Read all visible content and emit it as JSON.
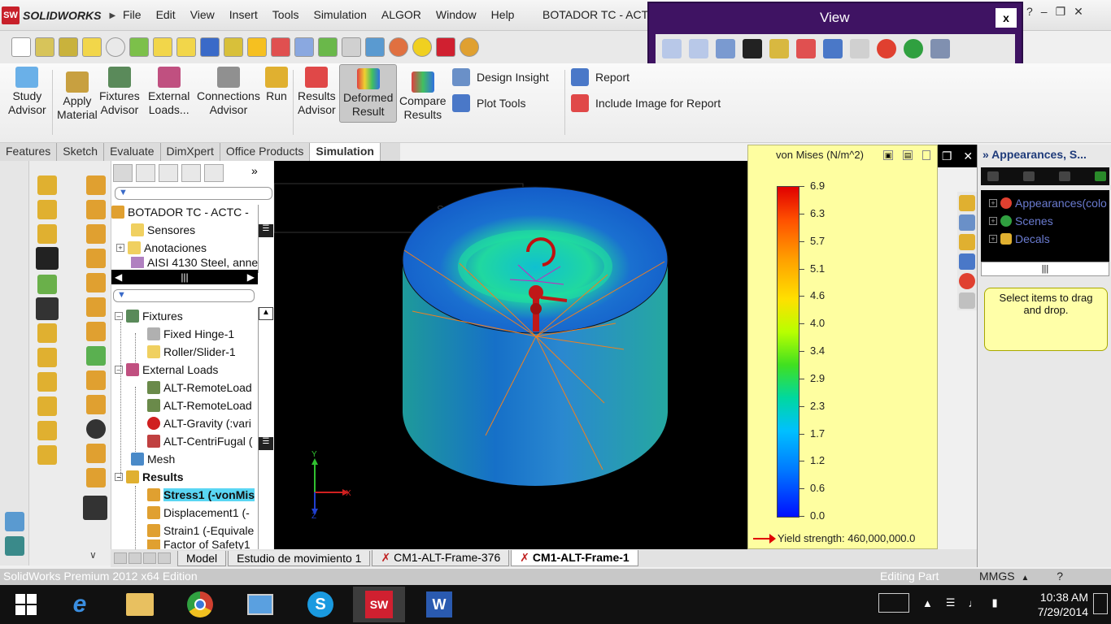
{
  "app": {
    "brand": "SOLIDWORKS",
    "menu": [
      "File",
      "Edit",
      "View",
      "Insert",
      "Tools",
      "Simulation",
      "ALGOR",
      "Window",
      "Help"
    ],
    "document_title": "BOTADOR TC -  ACTC"
  },
  "view_popup": {
    "title": "View",
    "close": "x"
  },
  "ribbon": {
    "buttons": [
      {
        "line1": "Study",
        "line2": "Advisor"
      },
      {
        "line1": "Apply",
        "line2": "Material"
      },
      {
        "line1": "Fixtures",
        "line2": "Advisor"
      },
      {
        "line1": "External",
        "line2": "Loads..."
      },
      {
        "line1": "Connections",
        "line2": "Advisor"
      },
      {
        "line1": "Run",
        "line2": ""
      },
      {
        "line1": "Results",
        "line2": "Advisor"
      },
      {
        "line1": "Deformed",
        "line2": "Result"
      },
      {
        "line1": "Compare",
        "line2": "Results"
      }
    ],
    "small": [
      "Design Insight",
      "Plot Tools",
      "Report",
      "Include Image for Report"
    ]
  },
  "cm_tabs": [
    "Features",
    "Sketch",
    "Evaluate",
    "DimXpert",
    "Office Products",
    "Simulation"
  ],
  "tree_top": [
    "BOTADOR TC -  ACTC -",
    "Sensores",
    "Anotaciones",
    "AISI 4130 Steel, anne"
  ],
  "study_tree": {
    "items": [
      "Fixtures",
      "Fixed Hinge-1",
      "Roller/Slider-1",
      "External Loads",
      "ALT-RemoteLoad",
      "ALT-RemoteLoad",
      "ALT-Gravity (:vari",
      "ALT-CentriFugal (",
      "Mesh",
      "Results",
      "Stress1 (-vonMis",
      "Displacement1 (-",
      "Strain1 (-Equivale",
      "Factor of Safety1"
    ]
  },
  "graphics": {
    "plot_label": "Stress1",
    "axis_x": "X",
    "axis_y": "Y",
    "axis_z": "Z",
    "legend": {
      "title": "von Mises (N/m^2)",
      "ticks": [
        "6.9",
        "6.3",
        "5.7",
        "5.1",
        "4.6",
        "4.0",
        "3.4",
        "2.9",
        "2.3",
        "1.7",
        "1.2",
        "0.6",
        "0.0"
      ],
      "yield": "Yield strength: 460,000,000.0"
    }
  },
  "task_pane": {
    "title": "Appearances, S...",
    "items": [
      "Appearances(colo",
      "Scenes",
      "Decals"
    ],
    "note": "Select items to drag and drop."
  },
  "bottom_tabs": [
    "Model",
    "Estudio de movimiento 1",
    "CM1-ALT-Frame-376",
    "CM1-ALT-Frame-1"
  ],
  "status": {
    "edition": "SolidWorks Premium 2012 x64 Edition",
    "mode": "Editing Part",
    "units": "MMGS"
  },
  "taskbar": {
    "time": "10:38 AM",
    "date": "7/29/2014"
  },
  "colors": {
    "accent": "#3f1363",
    "simulation_tab": "#ffffff",
    "legend_bg": "#fefea0"
  }
}
